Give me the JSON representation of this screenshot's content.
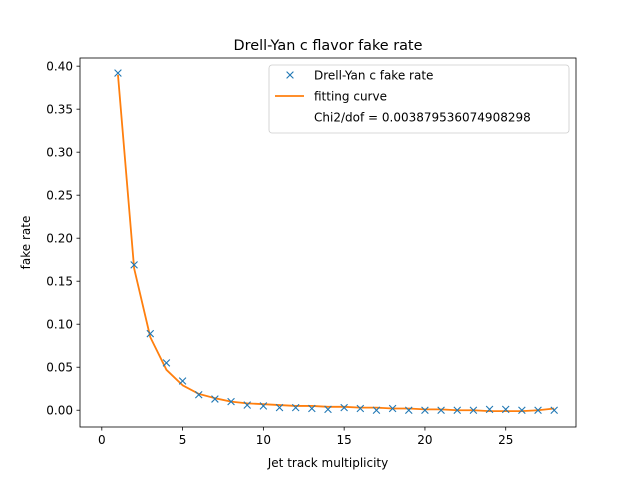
{
  "chart_data": {
    "type": "scatter",
    "title": "Drell-Yan c flavor fake rate",
    "xlabel": "Jet track multiplicity",
    "ylabel": "fake rate",
    "xlim": [
      -1.35,
      29.35
    ],
    "ylim": [
      -0.0195,
      0.4095
    ],
    "x_ticks": [
      0,
      5,
      10,
      15,
      20,
      25
    ],
    "x_tick_labels": [
      "0",
      "5",
      "10",
      "15",
      "20",
      "25"
    ],
    "y_ticks": [
      0,
      0.05,
      0.1,
      0.15,
      0.2,
      0.25,
      0.3,
      0.35,
      0.4
    ],
    "y_tick_labels": [
      "0.00",
      "0.05",
      "0.10",
      "0.15",
      "0.20",
      "0.25",
      "0.30",
      "0.35",
      "0.40"
    ],
    "grid": false,
    "legend_position": "top-right",
    "legend": {
      "entries": [
        {
          "label": "Drell-Yan c fake rate",
          "marker": "x",
          "color": "#1f77b4"
        },
        {
          "label": "fitting curve",
          "marker": "line",
          "color": "#ff7f0e"
        },
        {
          "label": "Chi2/dof = 0.003879536074908298",
          "marker": "none",
          "color": ""
        }
      ]
    },
    "series": [
      {
        "name": "Drell-Yan c fake rate",
        "kind": "scatter",
        "marker": "x",
        "color": "#1f77b4",
        "x": [
          1,
          2,
          3,
          4,
          5,
          6,
          7,
          8,
          9,
          10,
          11,
          12,
          13,
          14,
          15,
          16,
          17,
          18,
          19,
          20,
          21,
          22,
          23,
          24,
          25,
          26,
          27,
          28
        ],
        "y": [
          0.392,
          0.169,
          0.089,
          0.055,
          0.034,
          0.018,
          0.013,
          0.01,
          0.006,
          0.005,
          0.003,
          0.003,
          0.002,
          0.001,
          0.003,
          0.002,
          0.0,
          0.002,
          0.0,
          0.0,
          0.0,
          0.0,
          0.0,
          0.001,
          0.001,
          0.0,
          0.0,
          0.0
        ]
      },
      {
        "name": "fitting curve",
        "kind": "line",
        "color": "#ff7f0e",
        "x": [
          1,
          2,
          3,
          4,
          5,
          6,
          7,
          8,
          9,
          10,
          11,
          12,
          13,
          14,
          15,
          16,
          17,
          18,
          19,
          20,
          21,
          22,
          23,
          24,
          25,
          26,
          27,
          28
        ],
        "y": [
          0.39,
          0.165,
          0.085,
          0.047,
          0.029,
          0.019,
          0.014,
          0.01,
          0.008,
          0.007,
          0.006,
          0.005,
          0.005,
          0.004,
          0.004,
          0.003,
          0.003,
          0.002,
          0.002,
          0.001,
          0.001,
          0.0,
          0.0,
          -0.001,
          -0.001,
          -0.001,
          0.0,
          0.002
        ]
      }
    ]
  }
}
